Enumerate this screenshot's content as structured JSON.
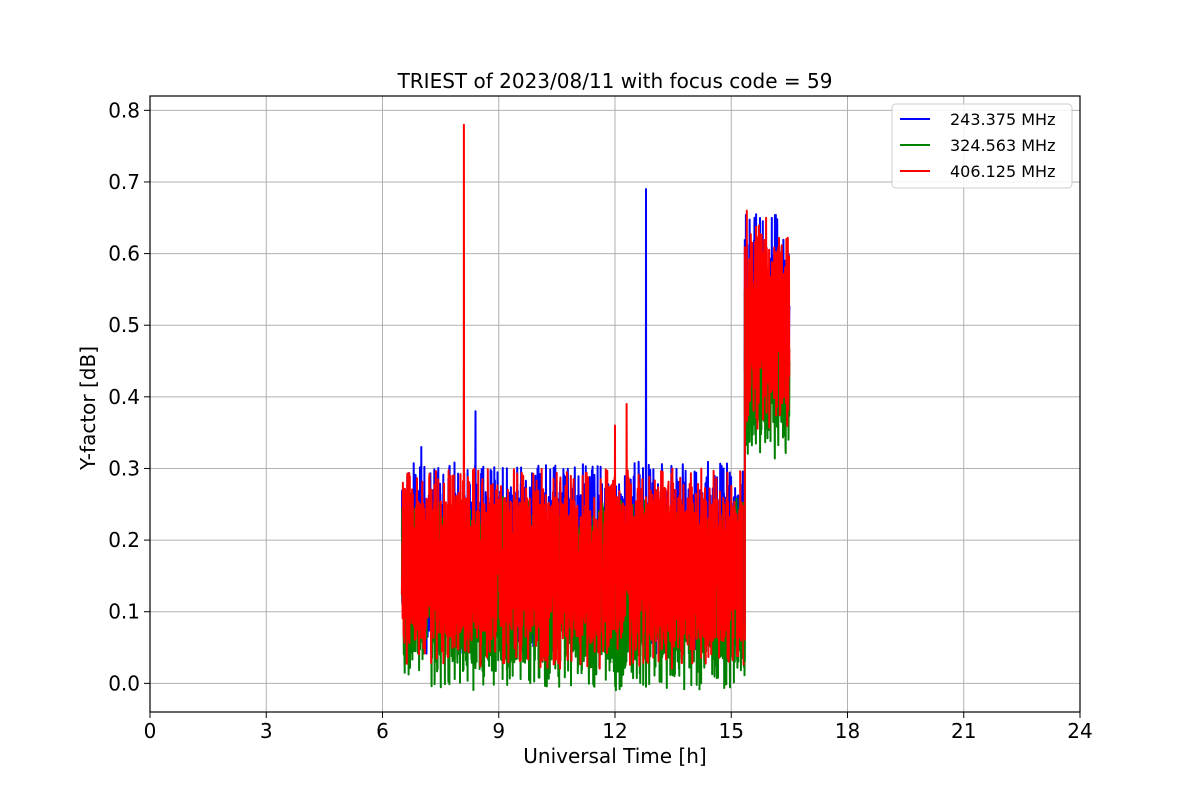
{
  "chart_data": {
    "type": "line",
    "title": "TRIEST of 2023/08/11 with focus code = 59",
    "xlabel": "Universal Time [h]",
    "ylabel": "Y-factor [dB]",
    "xlim": [
      0,
      24
    ],
    "ylim": [
      -0.04,
      0.82
    ],
    "xticks": [
      0,
      3,
      6,
      9,
      12,
      15,
      18,
      21,
      24
    ],
    "yticks": [
      0.0,
      0.1,
      0.2,
      0.3,
      0.4,
      0.5,
      0.6,
      0.7,
      0.8
    ],
    "xtick_labels": [
      "0",
      "3",
      "6",
      "9",
      "12",
      "15",
      "18",
      "21",
      "24"
    ],
    "ytick_labels": [
      "0.0",
      "0.1",
      "0.2",
      "0.3",
      "0.4",
      "0.5",
      "0.6",
      "0.7",
      "0.8"
    ],
    "grid": true,
    "legend_position": "top-right",
    "series": [
      {
        "name": "243.375 MHz",
        "color": "#0000ff",
        "segments": [
          {
            "x_start": 6.5,
            "x_end": 15.35,
            "low": 0.08,
            "high": 0.27,
            "peaks": [
              [
                7.0,
                0.33
              ],
              [
                8.4,
                0.38
              ],
              [
                10.0,
                0.3
              ],
              [
                12.8,
                0.69
              ],
              [
                14.8,
                0.3
              ]
            ]
          },
          {
            "x_start": 15.35,
            "x_end": 16.5,
            "low": 0.43,
            "high": 0.62,
            "peaks": [
              [
                15.6,
                0.65
              ],
              [
                16.3,
                0.61
              ]
            ]
          }
        ]
      },
      {
        "name": "324.563 MHz",
        "color": "#008000",
        "segments": [
          {
            "x_start": 6.5,
            "x_end": 15.35,
            "low": 0.03,
            "high": 0.22,
            "peaks": [
              [
                12.3,
                0.19
              ],
              [
                13.5,
                0.23
              ]
            ]
          },
          {
            "x_start": 15.35,
            "x_end": 16.5,
            "low": 0.35,
            "high": 0.55,
            "peaks": [
              [
                16.4,
                0.33
              ]
            ]
          }
        ]
      },
      {
        "name": "406.125 MHz",
        "color": "#ff0000",
        "segments": [
          {
            "x_start": 6.5,
            "x_end": 15.35,
            "low": 0.06,
            "high": 0.26,
            "peaks": [
              [
                8.1,
                0.78
              ],
              [
                12.3,
                0.39
              ],
              [
                12.0,
                0.36
              ]
            ]
          },
          {
            "x_start": 15.35,
            "x_end": 16.5,
            "low": 0.39,
            "high": 0.61,
            "peaks": [
              [
                15.4,
                0.66
              ],
              [
                15.9,
                0.65
              ]
            ]
          }
        ]
      }
    ]
  }
}
